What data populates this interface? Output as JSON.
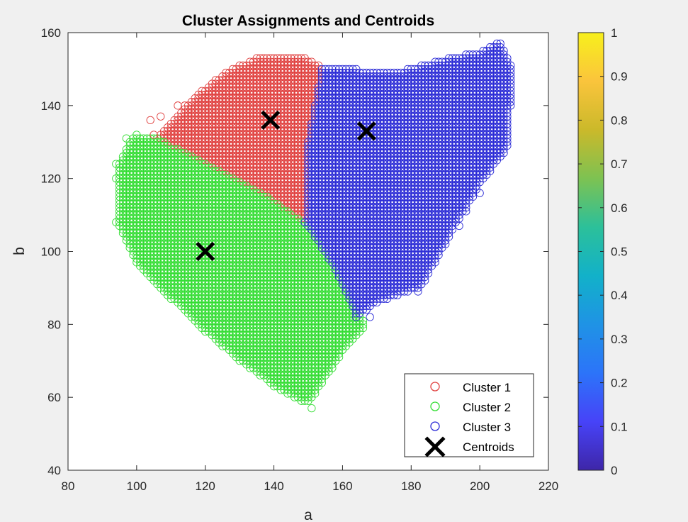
{
  "chart_data": {
    "type": "scatter",
    "title": "Cluster Assignments and Centroids",
    "xlabel": "a",
    "ylabel": "b",
    "xlim": [
      80,
      220
    ],
    "ylim": [
      40,
      160
    ],
    "xticks": [
      80,
      100,
      120,
      140,
      160,
      180,
      200,
      220
    ],
    "yticks": [
      40,
      60,
      80,
      100,
      120,
      140,
      160
    ],
    "grid": false,
    "legend_placement": "bottom-right",
    "series": [
      {
        "name": "Cluster 1",
        "marker": "circle",
        "color": "#e0403f",
        "region": [
          [
            106,
            131
          ],
          [
            112,
            137
          ],
          [
            120,
            145
          ],
          [
            127,
            150
          ],
          [
            137,
            154
          ],
          [
            150,
            153
          ],
          [
            154,
            151
          ],
          [
            150,
            130
          ],
          [
            149,
            108
          ],
          [
            140,
            114
          ],
          [
            125,
            122
          ],
          [
            110,
            129
          ]
        ]
      },
      {
        "name": "Cluster 2",
        "marker": "circle",
        "color": "#33dd33",
        "region": [
          [
            94,
            108
          ],
          [
            95,
            124
          ],
          [
            98,
            131
          ],
          [
            105,
            132
          ],
          [
            110,
            129
          ],
          [
            125,
            122
          ],
          [
            140,
            114
          ],
          [
            149,
            108
          ],
          [
            158,
            95
          ],
          [
            167,
            80
          ],
          [
            160,
            72
          ],
          [
            150,
            58
          ],
          [
            140,
            63
          ],
          [
            130,
            70
          ],
          [
            120,
            78
          ],
          [
            110,
            87
          ],
          [
            100,
            97
          ]
        ]
      },
      {
        "name": "Cluster 3",
        "marker": "circle",
        "color": "#2b2bd6",
        "region": [
          [
            154,
            151
          ],
          [
            165,
            150
          ],
          [
            178,
            150
          ],
          [
            190,
            153
          ],
          [
            200,
            155
          ],
          [
            206,
            158
          ],
          [
            210,
            150
          ],
          [
            208,
            128
          ],
          [
            200,
            118
          ],
          [
            193,
            107
          ],
          [
            183,
            90
          ],
          [
            170,
            86
          ],
          [
            164,
            82
          ],
          [
            158,
            95
          ],
          [
            149,
            108
          ],
          [
            150,
            130
          ]
        ]
      }
    ],
    "scatter_extras": [
      {
        "series": "Cluster 1",
        "points": [
          [
            104,
            136
          ],
          [
            107,
            137
          ],
          [
            112,
            140
          ],
          [
            114,
            140
          ],
          [
            105,
            132
          ]
        ]
      },
      {
        "series": "Cluster 2",
        "points": [
          [
            94,
            124
          ],
          [
            94,
            120
          ],
          [
            97,
            131
          ],
          [
            100,
            132
          ],
          [
            98,
            125
          ],
          [
            151,
            57
          ]
        ]
      },
      {
        "series": "Cluster 3",
        "points": [
          [
            168,
            82
          ],
          [
            182,
            89
          ],
          [
            194,
            107
          ],
          [
            196,
            111
          ],
          [
            200,
            116
          ],
          [
            188,
            100
          ],
          [
            200,
            121
          ]
        ]
      }
    ],
    "centroids": {
      "name": "Centroids",
      "marker": "x",
      "color": "#000000",
      "points": [
        [
          139,
          136
        ],
        [
          167,
          133
        ],
        [
          120,
          100
        ]
      ]
    },
    "colorbar": {
      "min": 0,
      "max": 1,
      "ticks": [
        "0",
        "0.1",
        "0.2",
        "0.3",
        "0.4",
        "0.5",
        "0.6",
        "0.7",
        "0.8",
        "0.9",
        "1"
      ],
      "colors": [
        "#3e26a8",
        "#4743f8",
        "#2c74f9",
        "#1f93e5",
        "#12b1c9",
        "#2cc09a",
        "#7dc252",
        "#cbb92a",
        "#fac43c",
        "#f8f01c"
      ]
    }
  }
}
